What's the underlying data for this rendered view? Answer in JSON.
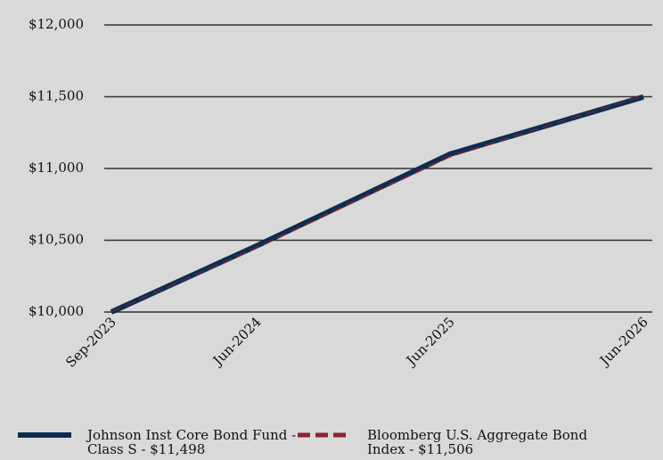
{
  "chart_data": {
    "type": "line",
    "x": [
      "Sep-2023",
      "Jun-2024",
      "Jun-2025",
      "Jun-2026"
    ],
    "x_ticks": [
      "Sep-2023",
      "Jun-2024",
      "Jun-2025",
      "Jun-2026"
    ],
    "y_ticks": [
      "$10,000",
      "$10,500",
      "$11,000",
      "$11,500",
      "$12,000"
    ],
    "ylim": [
      10000,
      12000
    ],
    "grid": true,
    "legend_placement": "bottom",
    "series": [
      {
        "name": "Johnson Inst Core Bond Fund - Class S - $11,498",
        "values": [
          10000,
          10460,
          11100,
          11498
        ],
        "color": "#0b2d52",
        "style": "solid"
      },
      {
        "name": "Bloomberg U.S. Aggregate Bond Index - $11,506",
        "values": [
          10000,
          10450,
          11085,
          11506
        ],
        "color": "#8b2332",
        "style": "dashed"
      }
    ],
    "legend": [
      {
        "line1": "Johnson Inst Core Bond Fund -",
        "line2": "Class S - $11,498"
      },
      {
        "line1": "Bloomberg U.S. Aggregate Bond",
        "line2": "Index - $11,506"
      }
    ]
  }
}
